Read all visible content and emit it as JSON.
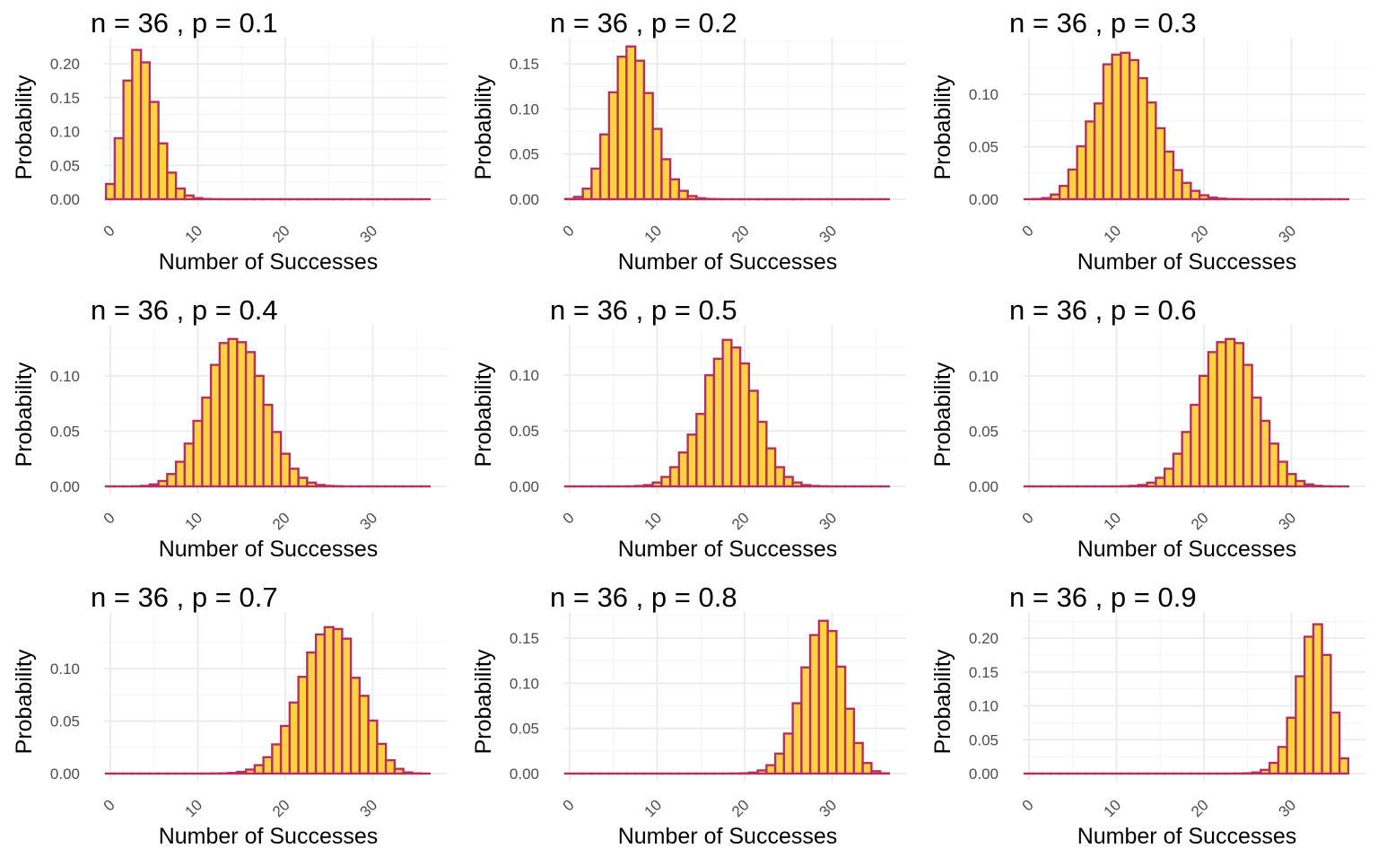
{
  "style": {
    "bar_fill": "#FFD242",
    "bar_stroke": "#B5305E",
    "grid_color": "#EBEBEB",
    "tick_color": "#4D4D4D"
  },
  "chart_data": [
    {
      "type": "bar",
      "title": "n = 36 , p = 0.1",
      "xlabel": "Number of Successes",
      "ylabel": "Probability",
      "xlim": [
        0,
        36
      ],
      "xticks": [
        "0",
        "10",
        "20",
        "30"
      ],
      "ylim": [
        0,
        0.22
      ],
      "yticks": [
        "0.00",
        "0.05",
        "0.10",
        "0.15",
        "0.20"
      ],
      "grid": true,
      "x": [
        0,
        1,
        2,
        3,
        4,
        5,
        6,
        7,
        8,
        9,
        10,
        11,
        12,
        13,
        14,
        15,
        16,
        17,
        18,
        19,
        20,
        21,
        22,
        23,
        24,
        25,
        26,
        27,
        28,
        29,
        30,
        31,
        32,
        33,
        34,
        35,
        36
      ],
      "values": [
        0.0225,
        0.0901,
        0.1752,
        0.2205,
        0.2021,
        0.1437,
        0.0825,
        0.0393,
        0.0158,
        0.0055,
        0.0016,
        0.0004,
        0.0001,
        0,
        0,
        0,
        0,
        0,
        0,
        0,
        0,
        0,
        0,
        0,
        0,
        0,
        0,
        0,
        0,
        0,
        0,
        0,
        0,
        0,
        0,
        0,
        0
      ]
    },
    {
      "type": "bar",
      "title": "n = 36 , p = 0.2",
      "xlabel": "Number of Successes",
      "ylabel": "Probability",
      "xlim": [
        0,
        36
      ],
      "xticks": [
        "0",
        "10",
        "20",
        "30"
      ],
      "ylim": [
        0,
        0.165
      ],
      "yticks": [
        "0.00",
        "0.05",
        "0.10",
        "0.15"
      ],
      "grid": true,
      "x": [
        0,
        1,
        2,
        3,
        4,
        5,
        6,
        7,
        8,
        9,
        10,
        11,
        12,
        13,
        14,
        15,
        16,
        17,
        18,
        19,
        20,
        21,
        22,
        23,
        24,
        25,
        26,
        27,
        28,
        29,
        30,
        31,
        32,
        33,
        34,
        35,
        36
      ],
      "values": [
        0.0003,
        0.0026,
        0.0117,
        0.0339,
        0.0718,
        0.1184,
        0.1579,
        0.1692,
        0.1534,
        0.1176,
        0.0779,
        0.0443,
        0.0221,
        0.0093,
        0.0035,
        0.0011,
        0.0003,
        0.0001,
        0,
        0,
        0,
        0,
        0,
        0,
        0,
        0,
        0,
        0,
        0,
        0,
        0,
        0,
        0,
        0,
        0,
        0,
        0
      ]
    },
    {
      "type": "bar",
      "title": "n = 36 , p = 0.3",
      "xlabel": "Number of Successes",
      "ylabel": "Probability",
      "xlim": [
        0,
        36
      ],
      "xticks": [
        "0",
        "10",
        "20",
        "30"
      ],
      "ylim": [
        0,
        0.142
      ],
      "yticks": [
        "0.00",
        "0.05",
        "0.10"
      ],
      "grid": true,
      "x": [
        0,
        1,
        2,
        3,
        4,
        5,
        6,
        7,
        8,
        9,
        10,
        11,
        12,
        13,
        14,
        15,
        16,
        17,
        18,
        19,
        20,
        21,
        22,
        23,
        24,
        25,
        26,
        27,
        28,
        29,
        30,
        31,
        32,
        33,
        34,
        35,
        36
      ],
      "values": [
        0,
        0.0002,
        0.0011,
        0.0045,
        0.0127,
        0.0283,
        0.0505,
        0.0741,
        0.0913,
        0.1286,
        0.1378,
        0.1396,
        0.1326,
        0.1154,
        0.0922,
        0.0677,
        0.0454,
        0.0278,
        0.0156,
        0.008,
        0.0038,
        0.0016,
        0.0006,
        0.0002,
        0.0001,
        0,
        0,
        0,
        0,
        0,
        0,
        0,
        0,
        0,
        0,
        0,
        0
      ]
    },
    {
      "type": "bar",
      "title": "n = 36 , p = 0.4",
      "xlabel": "Number of Successes",
      "ylabel": "Probability",
      "xlim": [
        0,
        36
      ],
      "xticks": [
        "0",
        "10",
        "20",
        "30"
      ],
      "ylim": [
        0,
        0.135
      ],
      "yticks": [
        "0.00",
        "0.05",
        "0.10"
      ],
      "grid": true,
      "x": [
        0,
        1,
        2,
        3,
        4,
        5,
        6,
        7,
        8,
        9,
        10,
        11,
        12,
        13,
        14,
        15,
        16,
        17,
        18,
        19,
        20,
        21,
        22,
        23,
        24,
        25,
        26,
        27,
        28,
        29,
        30,
        31,
        32,
        33,
        34,
        35,
        36
      ],
      "values": [
        0,
        0,
        0,
        0.0001,
        0.0005,
        0.0018,
        0.0049,
        0.0112,
        0.0223,
        0.0388,
        0.0594,
        0.0805,
        0.1101,
        0.1299,
        0.1336,
        0.1307,
        0.1217,
        0.1002,
        0.0739,
        0.0493,
        0.0296,
        0.016,
        0.0078,
        0.0034,
        0.0013,
        0.0005,
        0.0002,
        0,
        0,
        0,
        0,
        0,
        0,
        0,
        0,
        0,
        0
      ]
    },
    {
      "type": "bar",
      "title": "n = 36 , p = 0.5",
      "xlabel": "Number of Successes",
      "ylabel": "Probability",
      "xlim": [
        0,
        36
      ],
      "xticks": [
        "0",
        "10",
        "20",
        "30"
      ],
      "ylim": [
        0,
        0.134
      ],
      "yticks": [
        "0.00",
        "0.05",
        "0.10"
      ],
      "grid": true,
      "x": [
        0,
        1,
        2,
        3,
        4,
        5,
        6,
        7,
        8,
        9,
        10,
        11,
        12,
        13,
        14,
        15,
        16,
        17,
        18,
        19,
        20,
        21,
        22,
        23,
        24,
        25,
        26,
        27,
        28,
        29,
        30,
        31,
        32,
        33,
        34,
        35,
        36
      ],
      "values": [
        0,
        0,
        0,
        0,
        0,
        0,
        0,
        0.0001,
        0.0004,
        0.0012,
        0.0035,
        0.0085,
        0.0173,
        0.0305,
        0.0466,
        0.0652,
        0.1,
        0.1148,
        0.1318,
        0.1249,
        0.1106,
        0.086,
        0.0581,
        0.0342,
        0.0173,
        0.0085,
        0.0035,
        0.0012,
        0.0004,
        0.0001,
        0,
        0,
        0,
        0,
        0,
        0,
        0
      ]
    },
    {
      "type": "bar",
      "title": "n = 36 , p = 0.6",
      "xlabel": "Number of Successes",
      "ylabel": "Probability",
      "xlim": [
        0,
        36
      ],
      "xticks": [
        "0",
        "10",
        "20",
        "30"
      ],
      "ylim": [
        0,
        0.135
      ],
      "yticks": [
        "0.00",
        "0.05",
        "0.10"
      ],
      "grid": true,
      "x": [
        0,
        1,
        2,
        3,
        4,
        5,
        6,
        7,
        8,
        9,
        10,
        11,
        12,
        13,
        14,
        15,
        16,
        17,
        18,
        19,
        20,
        21,
        22,
        23,
        24,
        25,
        26,
        27,
        28,
        29,
        30,
        31,
        32,
        33,
        34,
        35,
        36
      ],
      "values": [
        0,
        0,
        0,
        0,
        0,
        0,
        0,
        0,
        0,
        0,
        0,
        0.0002,
        0.0005,
        0.0013,
        0.0034,
        0.0078,
        0.016,
        0.0296,
        0.0493,
        0.0739,
        0.1002,
        0.1217,
        0.1307,
        0.1336,
        0.1299,
        0.1101,
        0.0805,
        0.0594,
        0.0388,
        0.0223,
        0.0112,
        0.0049,
        0.0018,
        0.0005,
        0.0001,
        0,
        0
      ]
    },
    {
      "type": "bar",
      "title": "n = 36 , p = 0.7",
      "xlabel": "Number of Successes",
      "ylabel": "Probability",
      "xlim": [
        0,
        36
      ],
      "xticks": [
        "0",
        "10",
        "20",
        "30"
      ],
      "ylim": [
        0,
        0.142
      ],
      "yticks": [
        "0.00",
        "0.05",
        "0.10"
      ],
      "grid": true,
      "x": [
        0,
        1,
        2,
        3,
        4,
        5,
        6,
        7,
        8,
        9,
        10,
        11,
        12,
        13,
        14,
        15,
        16,
        17,
        18,
        19,
        20,
        21,
        22,
        23,
        24,
        25,
        26,
        27,
        28,
        29,
        30,
        31,
        32,
        33,
        34,
        35,
        36
      ],
      "values": [
        0,
        0,
        0,
        0,
        0,
        0,
        0,
        0,
        0,
        0,
        0,
        0,
        0.0001,
        0.0002,
        0.0006,
        0.0016,
        0.0038,
        0.008,
        0.0156,
        0.0278,
        0.0454,
        0.0677,
        0.0922,
        0.1154,
        0.1326,
        0.1396,
        0.1378,
        0.1286,
        0.0913,
        0.0741,
        0.0505,
        0.0283,
        0.0127,
        0.0045,
        0.0011,
        0.0002,
        0
      ]
    },
    {
      "type": "bar",
      "title": "n = 36 , p = 0.8",
      "xlabel": "Number of Successes",
      "ylabel": "Probability",
      "xlim": [
        0,
        36
      ],
      "xticks": [
        "0",
        "10",
        "20",
        "30"
      ],
      "ylim": [
        0,
        0.165
      ],
      "yticks": [
        "0.00",
        "0.05",
        "0.10",
        "0.15"
      ],
      "grid": true,
      "x": [
        0,
        1,
        2,
        3,
        4,
        5,
        6,
        7,
        8,
        9,
        10,
        11,
        12,
        13,
        14,
        15,
        16,
        17,
        18,
        19,
        20,
        21,
        22,
        23,
        24,
        25,
        26,
        27,
        28,
        29,
        30,
        31,
        32,
        33,
        34,
        35,
        36
      ],
      "values": [
        0,
        0,
        0,
        0,
        0,
        0,
        0,
        0,
        0,
        0,
        0,
        0,
        0,
        0,
        0,
        0,
        0,
        0,
        0,
        0.0001,
        0.0003,
        0.0011,
        0.0035,
        0.0093,
        0.0221,
        0.0443,
        0.0779,
        0.1176,
        0.1534,
        0.1692,
        0.1579,
        0.1184,
        0.0718,
        0.0339,
        0.0117,
        0.0026,
        0.0003
      ]
    },
    {
      "type": "bar",
      "title": "n = 36 , p = 0.9",
      "xlabel": "Number of Successes",
      "ylabel": "Probability",
      "xlim": [
        0,
        36
      ],
      "xticks": [
        "0",
        "10",
        "20",
        "30"
      ],
      "ylim": [
        0,
        0.22
      ],
      "yticks": [
        "0.00",
        "0.05",
        "0.10",
        "0.15",
        "0.20"
      ],
      "grid": true,
      "x": [
        0,
        1,
        2,
        3,
        4,
        5,
        6,
        7,
        8,
        9,
        10,
        11,
        12,
        13,
        14,
        15,
        16,
        17,
        18,
        19,
        20,
        21,
        22,
        23,
        24,
        25,
        26,
        27,
        28,
        29,
        30,
        31,
        32,
        33,
        34,
        35,
        36
      ],
      "values": [
        0,
        0,
        0,
        0,
        0,
        0,
        0,
        0,
        0,
        0,
        0,
        0,
        0,
        0,
        0,
        0,
        0,
        0,
        0,
        0,
        0,
        0,
        0,
        0,
        0.0001,
        0.0004,
        0.0016,
        0.0055,
        0.0158,
        0.0393,
        0.0825,
        0.1437,
        0.2021,
        0.2205,
        0.1752,
        0.0901,
        0.0225
      ]
    }
  ]
}
